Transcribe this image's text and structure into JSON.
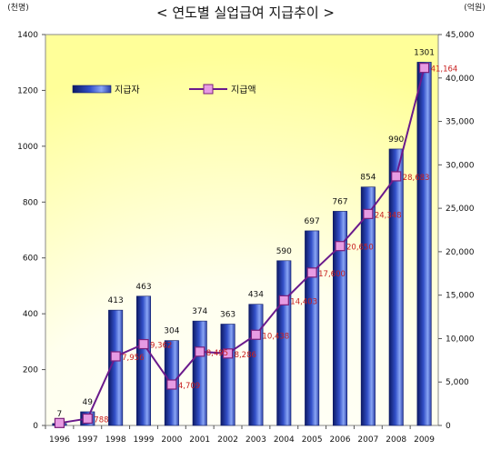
{
  "chart_data": {
    "type": "bar+line",
    "title": "< 연도별 실업급여 지급추이 >",
    "left_unit": "(천명)",
    "right_unit": "(억원)",
    "categories": [
      "1996",
      "1997",
      "1998",
      "1999",
      "2000",
      "2001",
      "2002",
      "2003",
      "2004",
      "2005",
      "2006",
      "2007",
      "2008",
      "2009"
    ],
    "series": [
      {
        "name": "지급자",
        "kind": "bar",
        "axis": "left",
        "values": [
          7,
          49,
          413,
          463,
          304,
          374,
          363,
          434,
          590,
          697,
          767,
          854,
          990,
          1301
        ],
        "labels": [
          "7",
          "49",
          "413",
          "463",
          "304",
          "374",
          "363",
          "434",
          "590",
          "697",
          "767",
          "854",
          "990",
          "1301"
        ]
      },
      {
        "name": "지급액",
        "kind": "line",
        "axis": "right",
        "values": [
          280,
          788,
          7956,
          9362,
          4709,
          8495,
          8286,
          10438,
          14403,
          17600,
          20650,
          24348,
          28683,
          41164
        ],
        "labels": [
          "",
          "788",
          "7,956",
          "9,362",
          "4,709",
          "8,495",
          "8,286",
          "10,438",
          "14,403",
          "17,600",
          "20,650",
          "24,348",
          "28,683",
          "41,164"
        ]
      }
    ],
    "left_axis": {
      "min": 0,
      "max": 1400,
      "ticks": [
        "0",
        "200",
        "400",
        "600",
        "800",
        "1000",
        "1200",
        "1400"
      ]
    },
    "right_axis": {
      "min": 0,
      "max": 45000,
      "ticks": [
        "0",
        "5,000",
        "10,000",
        "15,000",
        "20,000",
        "25,000",
        "30,000",
        "35,000",
        "40,000",
        "45,000"
      ]
    },
    "legend_position": "top-left",
    "grid": false,
    "colors": {
      "bar_fill_dark": "#101e6b",
      "bar_fill_light": "#7f9cf0",
      "line": "#6a1a8c",
      "marker_fill": "#e79be3",
      "marker_stroke": "#7a1f7a",
      "line_label": "#c81e1e",
      "plot_bg_outer": "#ffffcc",
      "plot_bg_inner": "#ffffff"
    }
  }
}
